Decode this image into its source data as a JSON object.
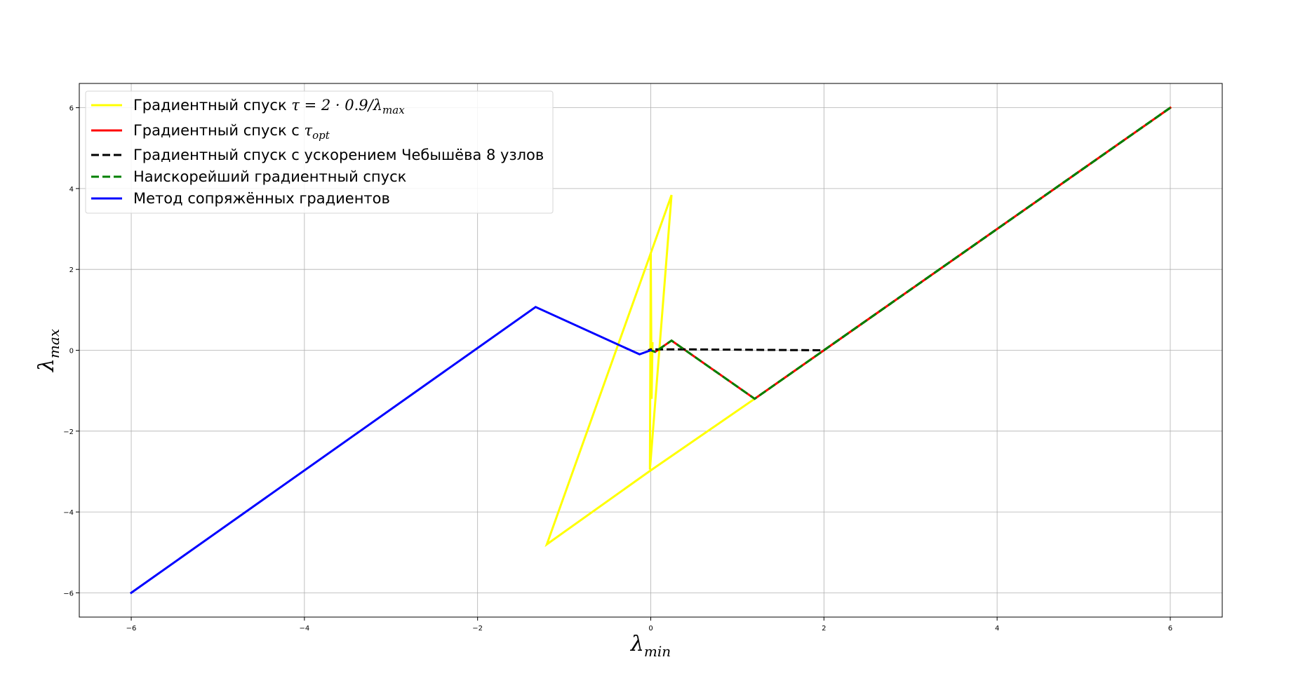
{
  "chart_data": {
    "type": "line",
    "title": "",
    "xlabel": {
      "base": "λ",
      "sub": "min"
    },
    "ylabel": {
      "base": "λ",
      "sub": "max"
    },
    "xlim": [
      -6.6,
      6.6
    ],
    "ylim": [
      -6.6,
      6.6
    ],
    "xticks": [
      -6,
      -4,
      -2,
      0,
      2,
      4,
      6
    ],
    "yticks": [
      -6,
      -4,
      -2,
      0,
      2,
      4,
      6
    ],
    "tick_labels": {
      "x": [
        "−6",
        "−4",
        "−2",
        "0",
        "2",
        "4",
        "6"
      ],
      "y": [
        "−6",
        "−4",
        "−2",
        "0",
        "2",
        "4",
        "6"
      ]
    },
    "grid": true,
    "legend_position": "top-left",
    "series": [
      {
        "name": "Градиентный спуск τ = 2 · 0.9/λmax",
        "legend": {
          "text": "Градиентный спуск ",
          "math": "τ = 2 · 0.9/λ",
          "sub": "max",
          "tail": ""
        },
        "color": "#ffff00",
        "dash": "solid",
        "points": [
          [
            6,
            6
          ],
          [
            2,
            0
          ],
          [
            1.2,
            -1.2
          ],
          [
            -0.02,
            -3.0
          ],
          [
            -1.2,
            -4.8
          ],
          [
            0.24,
            3.84
          ],
          [
            -0.01,
            -2.95
          ],
          [
            0,
            2.4
          ],
          [
            0.01,
            -1.2
          ],
          [
            0.02,
            0.2
          ],
          [
            0,
            0
          ]
        ]
      },
      {
        "name": "Градиентный спуск с τopt",
        "legend": {
          "text": "Градиентный спуск с ",
          "math": "τ",
          "sub": "opt",
          "tail": ""
        },
        "color": "#ff0000",
        "dash": "solid",
        "points": [
          [
            6,
            6
          ],
          [
            2,
            0
          ],
          [
            1.2,
            -1.2
          ],
          [
            0.24,
            0.24
          ],
          [
            0.05,
            -0.04
          ],
          [
            0,
            0
          ]
        ]
      },
      {
        "name": "Градиентный спуск с ускорением Чебышёва 8 узлов",
        "legend": {
          "text": "Градиентный спуск с ускорением Чебышёва 8 узлов",
          "math": "",
          "sub": "",
          "tail": ""
        },
        "color": "#000000",
        "dash": "dashed",
        "points": [
          [
            6,
            6
          ],
          [
            2,
            0
          ],
          [
            0.5,
            0.02
          ],
          [
            0,
            0.02
          ],
          [
            -0.03,
            0
          ]
        ]
      },
      {
        "name": "Наискорейший градиентный спуск",
        "legend": {
          "text": "Наискорейший градиентный спуск",
          "math": "",
          "sub": "",
          "tail": ""
        },
        "color": "#008000",
        "dash": "dashed",
        "points": [
          [
            6,
            6
          ],
          [
            2,
            0
          ],
          [
            1.2,
            -1.2
          ],
          [
            0.24,
            0.24
          ],
          [
            0.05,
            -0.04
          ],
          [
            0,
            0
          ]
        ]
      },
      {
        "name": "Метод сопряжённых градиентов",
        "legend": {
          "text": "Метод сопряжённых градиентов",
          "math": "",
          "sub": "",
          "tail": ""
        },
        "color": "#0000ff",
        "dash": "solid",
        "points": [
          [
            -6,
            -6
          ],
          [
            -1.33,
            1.07
          ],
          [
            -0.13,
            -0.1
          ],
          [
            0,
            0
          ]
        ]
      }
    ]
  }
}
